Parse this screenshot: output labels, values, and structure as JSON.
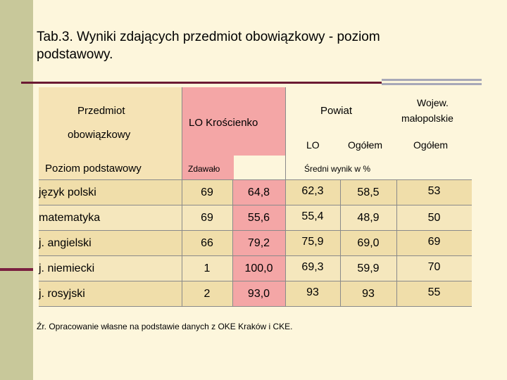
{
  "title": "Tab.3.  Wyniki zdających przedmiot obowiązkowy - poziom podstawowy.",
  "header": {
    "przedmiot": "Przedmiot",
    "obowiazkowy": "obowiązkowy",
    "poziom": "Poziom podstawowy",
    "lo_kroscienko": "LO Krościenko",
    "powiat": "Powiat",
    "wojew": "Wojew.",
    "malopolskie": "małopolskie",
    "lo": "LO",
    "ogolem_powiat": "Ogółem",
    "ogolem_wojew": "Ogółem",
    "zdawalo": "Zdawało",
    "sredni_wynik": "Średni wynik w %"
  },
  "rows": [
    {
      "subject": "język polski",
      "zdawalo": "69",
      "lo_kroscienko": "64,8",
      "lo": "62,3",
      "ogolem": "58,5",
      "wojew": "53"
    },
    {
      "subject": "matematyka",
      "zdawalo": "69",
      "lo_kroscienko": "55,6",
      "lo": "55,4",
      "ogolem": "48,9",
      "wojew": "50"
    },
    {
      "subject": "j. angielski",
      "zdawalo": "66",
      "lo_kroscienko": "79,2",
      "lo": "75,9",
      "ogolem": "69,0",
      "wojew": "69"
    },
    {
      "subject": "j. niemiecki",
      "zdawalo": "1",
      "lo_kroscienko": "100,0",
      "lo": "69,3",
      "ogolem": "59,9",
      "wojew": "70"
    },
    {
      "subject": "j. rosyjski",
      "zdawalo": "2",
      "lo_kroscienko": "93,0",
      "lo": "93",
      "ogolem": "93",
      "wojew": "55"
    }
  ],
  "source": "Źr. Opracowanie własne na podstawie danych z OKE Kraków i CKE."
}
